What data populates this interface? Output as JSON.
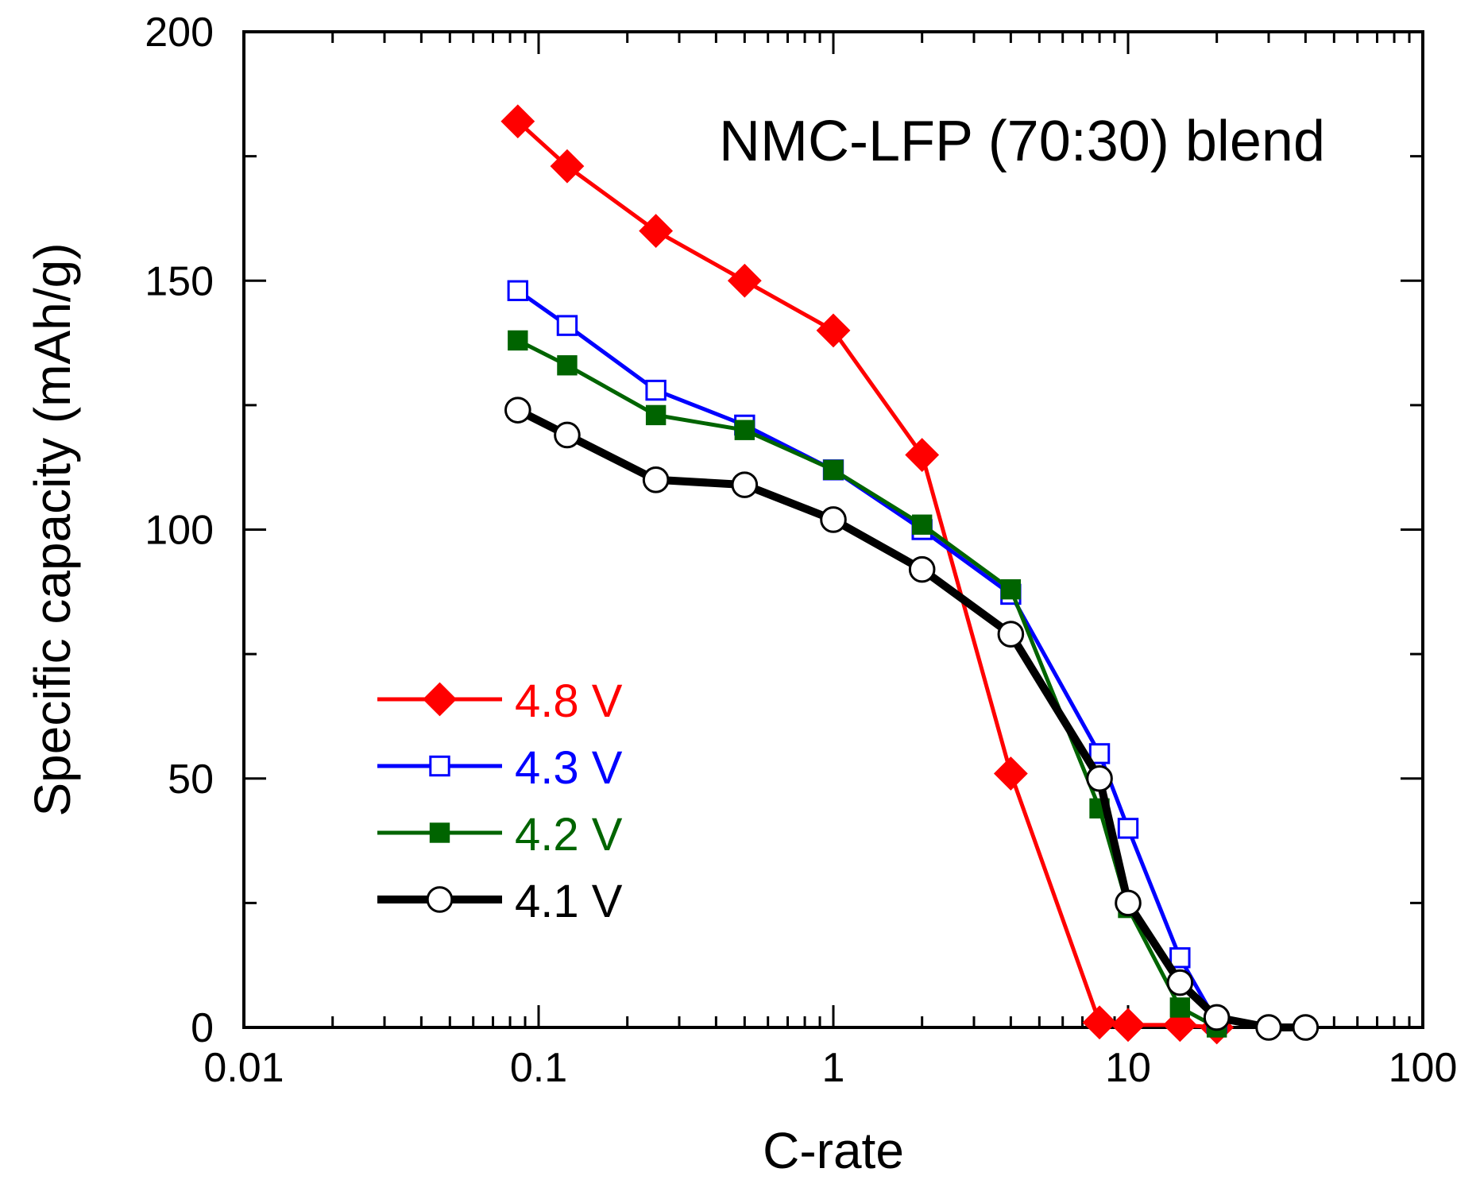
{
  "chart_data": {
    "type": "line",
    "title": "",
    "annotation": "NMC-LFP (70:30) blend",
    "xlabel": "C-rate",
    "ylabel": "Specific capacity (mAh/g)",
    "x_scale": "log",
    "xlim": [
      0.01,
      100
    ],
    "ylim": [
      0,
      200
    ],
    "x_ticks": [
      0.01,
      0.1,
      1,
      10,
      100
    ],
    "x_tick_labels": [
      "0.01",
      "0.1",
      "1",
      "10",
      "100"
    ],
    "y_ticks": [
      0,
      50,
      100,
      150,
      200
    ],
    "y_tick_labels": [
      "0",
      "50",
      "100",
      "150",
      "200"
    ],
    "legend_position": "lower-left",
    "grid": false,
    "series": [
      {
        "name": "4.8 V",
        "color": "#ff0000",
        "marker": "filled-diamond",
        "x": [
          0.085,
          0.125,
          0.25,
          0.5,
          1,
          2,
          4,
          8,
          10,
          15,
          20
        ],
        "y": [
          182,
          173,
          160,
          150,
          140,
          115,
          51,
          1,
          0.5,
          0.5,
          0
        ]
      },
      {
        "name": "4.3 V",
        "color": "#0000ff",
        "marker": "open-square",
        "x": [
          0.085,
          0.125,
          0.25,
          0.5,
          1,
          2,
          4,
          8,
          10,
          15,
          20
        ],
        "y": [
          148,
          141,
          128,
          121,
          112,
          100,
          87,
          55,
          40,
          14,
          1
        ]
      },
      {
        "name": "4.2 V",
        "color": "#006400",
        "marker": "filled-square",
        "x": [
          0.085,
          0.125,
          0.25,
          0.5,
          1,
          2,
          4,
          8,
          10,
          15,
          20
        ],
        "y": [
          138,
          133,
          123,
          120,
          112,
          101,
          88,
          44,
          24,
          4,
          0
        ]
      },
      {
        "name": "4.1 V",
        "color": "#000000",
        "marker": "open-circle",
        "x": [
          0.085,
          0.125,
          0.25,
          0.5,
          1,
          2,
          4,
          8,
          10,
          15,
          20,
          30,
          40
        ],
        "y": [
          124,
          119,
          110,
          109,
          102,
          92,
          79,
          50,
          25,
          9,
          2,
          0,
          0
        ]
      }
    ]
  }
}
